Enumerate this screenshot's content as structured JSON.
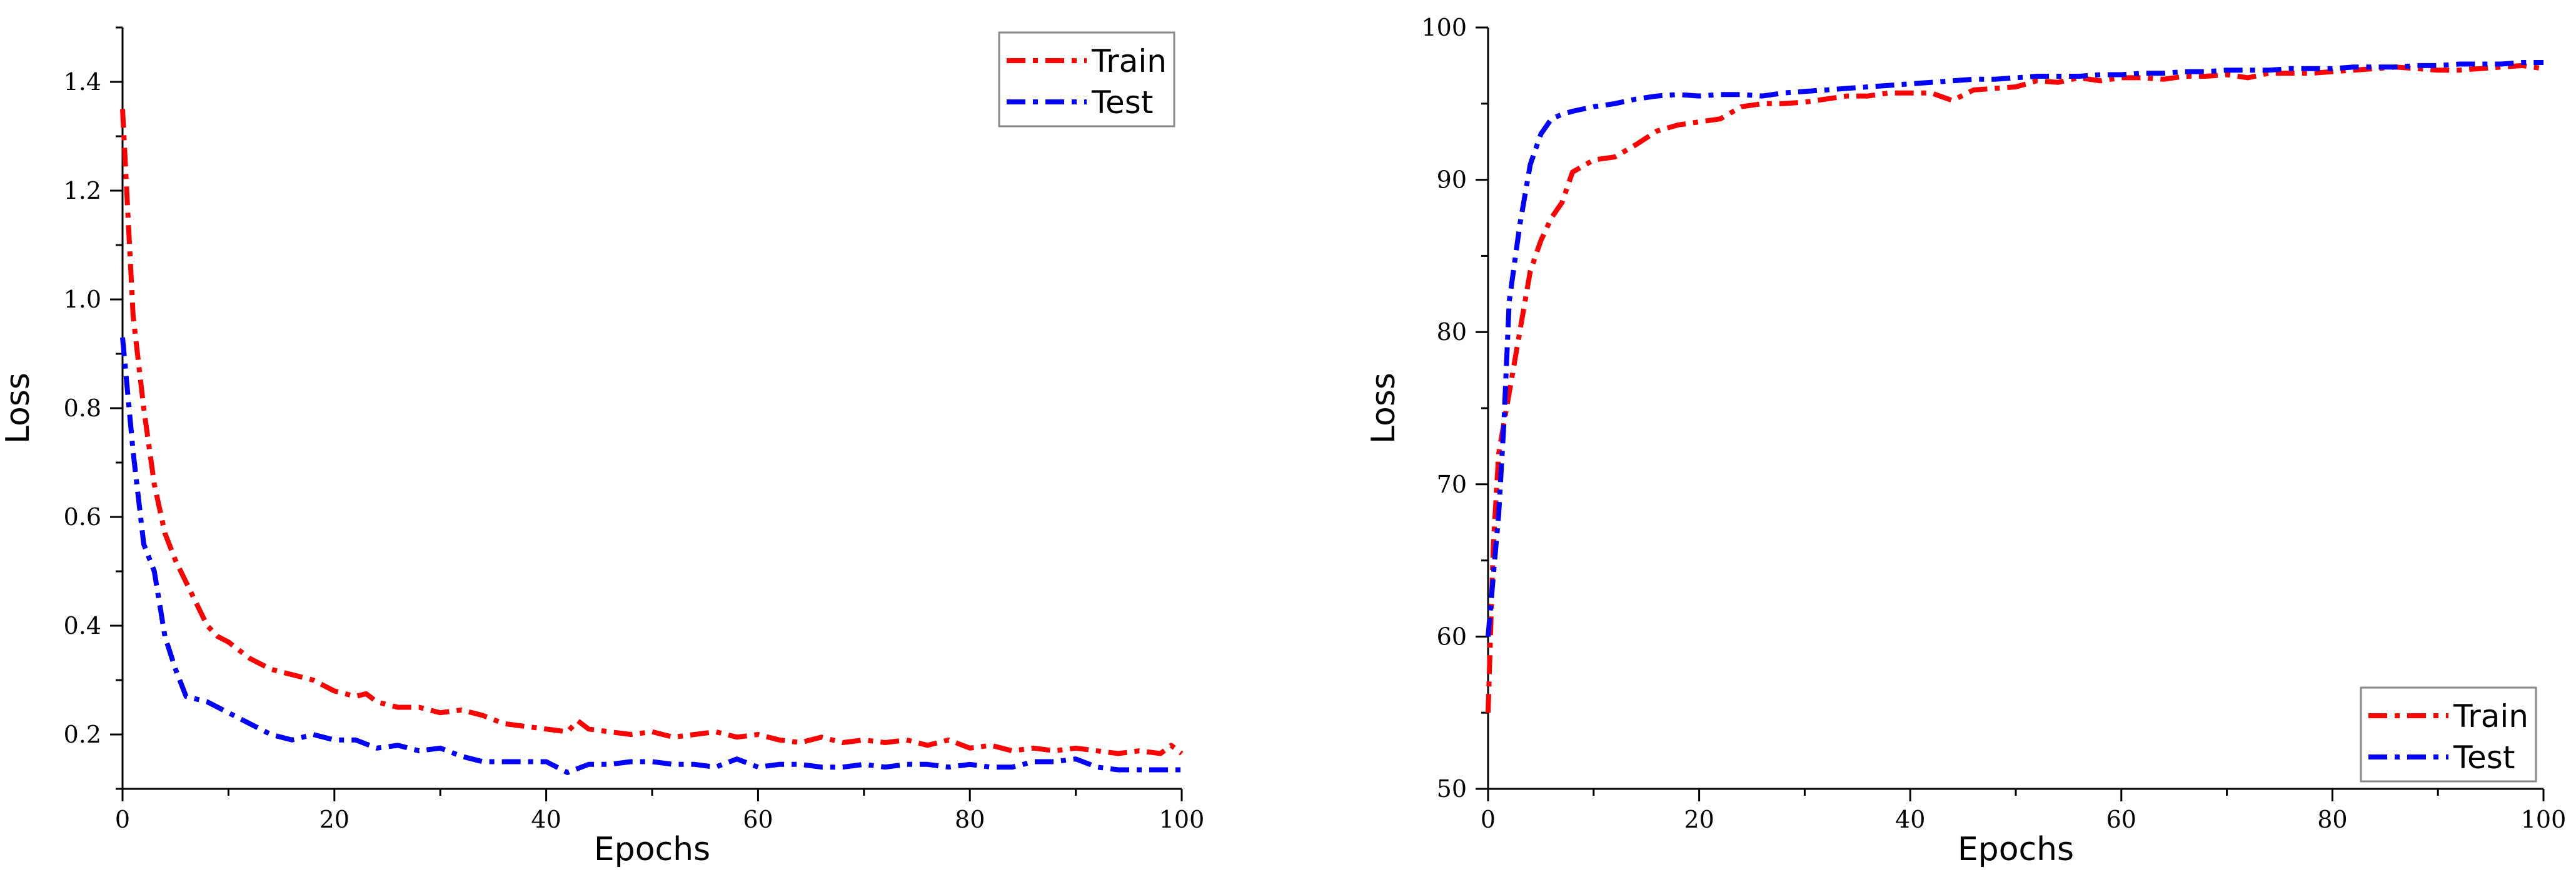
{
  "chart_data": [
    {
      "type": "line",
      "xlabel": "Epochs",
      "ylabel": "Loss",
      "xlim": [
        0,
        100
      ],
      "ylim": [
        0.1,
        1.5
      ],
      "xticks": [
        0,
        20,
        40,
        60,
        80,
        100
      ],
      "yticks": [
        0.2,
        0.4,
        0.6,
        0.8,
        1.0,
        1.2,
        1.4
      ],
      "ytick_labels": [
        "0.2",
        "0.4",
        "0.6",
        "0.8",
        "1.0",
        "1.2",
        "1.4"
      ],
      "legend_position": "top-right",
      "grid": false,
      "series": [
        {
          "name": "Train",
          "color": "#ff0000",
          "x": [
            0,
            1,
            2,
            3,
            4,
            5,
            6,
            7,
            8,
            9,
            10,
            12,
            14,
            16,
            18,
            20,
            22,
            23,
            24,
            26,
            28,
            30,
            32,
            34,
            36,
            38,
            40,
            42,
            43,
            44,
            46,
            48,
            50,
            52,
            54,
            56,
            58,
            60,
            62,
            64,
            66,
            68,
            70,
            72,
            74,
            76,
            78,
            80,
            82,
            84,
            86,
            88,
            90,
            92,
            94,
            96,
            98,
            99,
            100
          ],
          "y": [
            1.35,
            0.97,
            0.8,
            0.66,
            0.57,
            0.52,
            0.48,
            0.44,
            0.4,
            0.38,
            0.37,
            0.34,
            0.32,
            0.31,
            0.3,
            0.28,
            0.27,
            0.275,
            0.26,
            0.25,
            0.25,
            0.24,
            0.245,
            0.235,
            0.22,
            0.215,
            0.21,
            0.205,
            0.225,
            0.21,
            0.205,
            0.2,
            0.205,
            0.195,
            0.2,
            0.205,
            0.195,
            0.2,
            0.19,
            0.185,
            0.195,
            0.185,
            0.19,
            0.185,
            0.19,
            0.18,
            0.19,
            0.175,
            0.18,
            0.17,
            0.175,
            0.17,
            0.175,
            0.17,
            0.165,
            0.17,
            0.165,
            0.18,
            0.165
          ]
        },
        {
          "name": "Test",
          "color": "#0000ff",
          "x": [
            0,
            1,
            2,
            3,
            4,
            5,
            6,
            8,
            10,
            12,
            14,
            16,
            18,
            20,
            22,
            24,
            26,
            28,
            30,
            32,
            34,
            36,
            38,
            40,
            42,
            44,
            46,
            48,
            50,
            52,
            54,
            56,
            58,
            60,
            62,
            64,
            66,
            68,
            70,
            72,
            74,
            76,
            78,
            80,
            82,
            84,
            86,
            88,
            90,
            92,
            94,
            96,
            98,
            100
          ],
          "y": [
            0.93,
            0.72,
            0.55,
            0.5,
            0.38,
            0.32,
            0.27,
            0.26,
            0.24,
            0.22,
            0.2,
            0.19,
            0.2,
            0.19,
            0.19,
            0.175,
            0.18,
            0.17,
            0.175,
            0.16,
            0.15,
            0.15,
            0.15,
            0.15,
            0.13,
            0.145,
            0.145,
            0.15,
            0.15,
            0.145,
            0.145,
            0.14,
            0.155,
            0.14,
            0.145,
            0.145,
            0.14,
            0.14,
            0.145,
            0.14,
            0.145,
            0.145,
            0.14,
            0.145,
            0.14,
            0.14,
            0.15,
            0.15,
            0.155,
            0.14,
            0.135,
            0.135,
            0.135,
            0.135
          ]
        }
      ]
    },
    {
      "type": "line",
      "xlabel": "Epochs",
      "ylabel": "Loss",
      "xlim": [
        0,
        100
      ],
      "ylim": [
        50,
        100
      ],
      "xticks": [
        0,
        20,
        40,
        60,
        80,
        100
      ],
      "yticks": [
        50,
        60,
        70,
        80,
        90,
        100
      ],
      "ytick_labels": [
        "50",
        "60",
        "70",
        "80",
        "90",
        "100"
      ],
      "legend_position": "bottom-right",
      "grid": false,
      "series": [
        {
          "name": "Train",
          "color": "#ff0000",
          "x": [
            0,
            0.5,
            1,
            1.5,
            2,
            3,
            4,
            5,
            6,
            7,
            8,
            10,
            12,
            14,
            16,
            18,
            20,
            22,
            24,
            26,
            28,
            30,
            32,
            34,
            36,
            38,
            40,
            42,
            44,
            46,
            48,
            50,
            52,
            54,
            56,
            58,
            60,
            62,
            64,
            66,
            68,
            70,
            72,
            74,
            76,
            78,
            80,
            82,
            84,
            86,
            88,
            90,
            92,
            94,
            96,
            98,
            100
          ],
          "y": [
            55,
            66,
            72,
            74,
            76,
            80,
            84,
            86,
            87.5,
            88.5,
            90.5,
            91.3,
            91.5,
            92.3,
            93.2,
            93.6,
            93.8,
            94,
            94.8,
            95,
            95,
            95.1,
            95.3,
            95.5,
            95.5,
            95.7,
            95.7,
            95.7,
            95.2,
            95.9,
            96,
            96.1,
            96.5,
            96.4,
            96.7,
            96.5,
            96.7,
            96.7,
            96.6,
            96.8,
            96.8,
            96.9,
            96.7,
            97,
            97,
            97,
            97.1,
            97.2,
            97.3,
            97.4,
            97.3,
            97.2,
            97.2,
            97.3,
            97.4,
            97.5,
            97.3
          ]
        },
        {
          "name": "Test",
          "color": "#0000ff",
          "x": [
            0,
            0.5,
            1,
            1.5,
            2,
            3,
            4,
            5,
            6,
            7,
            8,
            10,
            12,
            14,
            16,
            18,
            20,
            22,
            24,
            26,
            28,
            30,
            32,
            34,
            36,
            38,
            40,
            42,
            44,
            46,
            48,
            50,
            52,
            54,
            56,
            58,
            60,
            62,
            64,
            66,
            68,
            70,
            72,
            74,
            76,
            78,
            80,
            82,
            84,
            86,
            88,
            90,
            92,
            94,
            96,
            98,
            100
          ],
          "y": [
            60,
            64,
            68,
            74,
            82,
            87,
            91,
            93,
            94,
            94.3,
            94.5,
            94.8,
            95,
            95.3,
            95.5,
            95.6,
            95.5,
            95.6,
            95.6,
            95.5,
            95.7,
            95.8,
            95.9,
            96,
            96.1,
            96.2,
            96.3,
            96.4,
            96.5,
            96.6,
            96.6,
            96.7,
            96.8,
            96.8,
            96.8,
            96.9,
            96.9,
            97,
            97,
            97.1,
            97.1,
            97.2,
            97.2,
            97.2,
            97.3,
            97.3,
            97.3,
            97.4,
            97.4,
            97.4,
            97.5,
            97.5,
            97.6,
            97.6,
            97.6,
            97.7,
            97.7
          ]
        }
      ]
    }
  ]
}
